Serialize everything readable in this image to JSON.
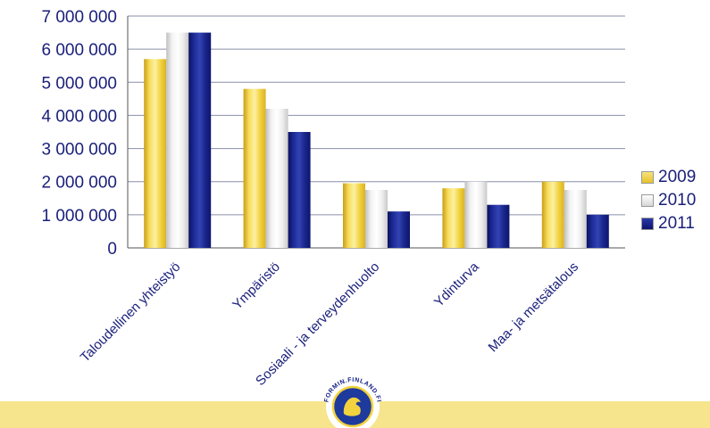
{
  "chart_data": {
    "type": "bar",
    "title": "",
    "xlabel": "",
    "ylabel": "",
    "categories": [
      "Taloudellinen yhteistyö",
      "Ympäristö",
      "Sosiaali - ja terveydenhuolto",
      "Ydinturva",
      "Maa- ja metsätalous"
    ],
    "series": [
      {
        "name": "2009",
        "values": [
          5700000,
          4800000,
          1950000,
          1800000,
          2000000
        ]
      },
      {
        "name": "2010",
        "values": [
          6500000,
          4200000,
          1750000,
          2000000,
          1750000
        ]
      },
      {
        "name": "2011",
        "values": [
          6500000,
          3500000,
          1100000,
          1300000,
          1000000
        ]
      }
    ],
    "ylim": [
      0,
      7000000
    ],
    "yticks": [
      0,
      1000000,
      2000000,
      3000000,
      4000000,
      5000000,
      6000000,
      7000000
    ],
    "ytick_labels": [
      "0",
      "1 000 000",
      "2 000 000",
      "3 000 000",
      "4 000 000",
      "5 000 000",
      "6 000 000",
      "7 000 000"
    ],
    "grid": true,
    "legend_position": "right",
    "colors": {
      "2009": "#f2d23e",
      "2010": "#f4f4f4",
      "2011": "#14208a",
      "text": "#1a1f7a",
      "grid": "#8a8fa8"
    }
  },
  "logo": {
    "text": "FORMIN.FINLAND.FI"
  }
}
